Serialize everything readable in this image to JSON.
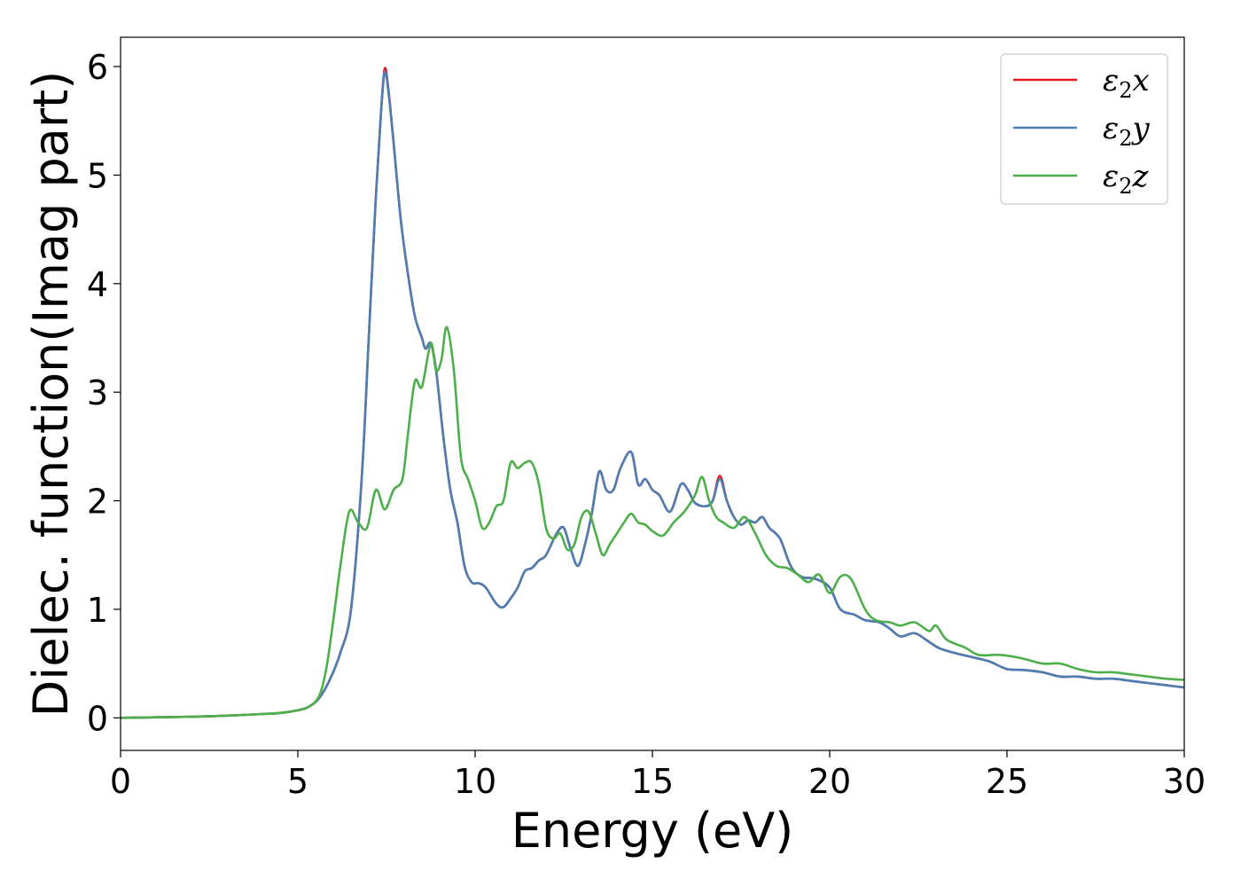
{
  "chart_data": {
    "type": "line",
    "title": "",
    "xlabel": "Energy (eV)",
    "ylabel": "Dielec. function(Imag part)",
    "xlim": [
      0,
      30
    ],
    "ylim": [
      -0.3,
      6.27
    ],
    "xticks": [
      0,
      5,
      10,
      15,
      20,
      25,
      30
    ],
    "yticks": [
      0,
      1,
      2,
      3,
      4,
      5,
      6
    ],
    "grid": false,
    "legend_position": "top-right",
    "series": [
      {
        "name_main": "ε",
        "name_sub": "2",
        "name_suffix": "x",
        "color": "#e41a1c",
        "x": [
          0,
          1,
          2,
          3,
          4,
          4.5,
          5,
          5.3,
          5.6,
          5.9,
          6.2,
          6.5,
          6.8,
          7.0,
          7.2,
          7.35,
          7.45,
          7.55,
          7.7,
          7.9,
          8.1,
          8.3,
          8.5,
          8.6,
          8.75,
          8.9,
          9.1,
          9.3,
          9.5,
          9.7,
          9.9,
          10.1,
          10.3,
          10.6,
          10.8,
          11.0,
          11.2,
          11.4,
          11.6,
          11.8,
          12.0,
          12.3,
          12.5,
          12.7,
          12.9,
          13.1,
          13.3,
          13.5,
          13.7,
          13.9,
          14.1,
          14.4,
          14.6,
          14.8,
          15.0,
          15.2,
          15.5,
          15.8,
          16.0,
          16.2,
          16.5,
          16.7,
          16.9,
          17.1,
          17.3,
          17.5,
          17.7,
          17.9,
          18.1,
          18.3,
          18.6,
          18.9,
          19.2,
          19.6,
          20.0,
          20.3,
          20.7,
          21.0,
          21.4,
          21.7,
          22.0,
          22.4,
          22.8,
          23.1,
          23.5,
          24.0,
          24.5,
          25.0,
          25.5,
          26.0,
          26.5,
          27.0,
          27.5,
          28.0,
          28.5,
          29.0,
          29.5,
          30.0
        ],
        "y": [
          0.0,
          0.005,
          0.01,
          0.02,
          0.035,
          0.045,
          0.07,
          0.1,
          0.18,
          0.35,
          0.6,
          1.0,
          2.2,
          3.5,
          4.8,
          5.6,
          5.98,
          5.8,
          5.3,
          4.6,
          4.1,
          3.7,
          3.5,
          3.4,
          3.45,
          3.2,
          2.6,
          2.1,
          1.8,
          1.4,
          1.25,
          1.24,
          1.2,
          1.05,
          1.02,
          1.1,
          1.2,
          1.35,
          1.38,
          1.45,
          1.5,
          1.7,
          1.75,
          1.55,
          1.4,
          1.6,
          1.9,
          2.27,
          2.1,
          2.1,
          2.3,
          2.45,
          2.15,
          2.2,
          2.1,
          2.05,
          1.9,
          2.15,
          2.1,
          1.98,
          1.95,
          2.0,
          2.23,
          2.0,
          1.85,
          1.78,
          1.82,
          1.8,
          1.85,
          1.75,
          1.65,
          1.4,
          1.3,
          1.28,
          1.2,
          1.0,
          0.95,
          0.9,
          0.88,
          0.82,
          0.75,
          0.78,
          0.7,
          0.64,
          0.6,
          0.56,
          0.52,
          0.45,
          0.44,
          0.42,
          0.38,
          0.38,
          0.36,
          0.36,
          0.34,
          0.32,
          0.3,
          0.28
        ]
      },
      {
        "name_main": "ε",
        "name_sub": "2",
        "name_suffix": "y",
        "color": "#4a7fb5",
        "x": [
          0,
          1,
          2,
          3,
          4,
          4.5,
          5,
          5.3,
          5.6,
          5.9,
          6.2,
          6.5,
          6.8,
          7.0,
          7.2,
          7.35,
          7.45,
          7.55,
          7.7,
          7.9,
          8.1,
          8.3,
          8.5,
          8.6,
          8.75,
          8.9,
          9.1,
          9.3,
          9.5,
          9.7,
          9.9,
          10.1,
          10.3,
          10.6,
          10.8,
          11.0,
          11.2,
          11.4,
          11.6,
          11.8,
          12.0,
          12.3,
          12.5,
          12.7,
          12.9,
          13.1,
          13.3,
          13.5,
          13.7,
          13.9,
          14.1,
          14.4,
          14.6,
          14.8,
          15.0,
          15.2,
          15.5,
          15.8,
          16.0,
          16.2,
          16.5,
          16.7,
          16.9,
          17.1,
          17.3,
          17.5,
          17.7,
          17.9,
          18.1,
          18.3,
          18.6,
          18.9,
          19.2,
          19.6,
          20.0,
          20.3,
          20.7,
          21.0,
          21.4,
          21.7,
          22.0,
          22.4,
          22.8,
          23.1,
          23.5,
          24.0,
          24.5,
          25.0,
          25.5,
          26.0,
          26.5,
          27.0,
          27.5,
          28.0,
          28.5,
          29.0,
          29.5,
          30.0
        ],
        "y": [
          0.0,
          0.005,
          0.01,
          0.02,
          0.035,
          0.045,
          0.07,
          0.1,
          0.18,
          0.35,
          0.6,
          1.0,
          2.2,
          3.5,
          4.8,
          5.6,
          5.95,
          5.78,
          5.3,
          4.6,
          4.1,
          3.7,
          3.5,
          3.4,
          3.45,
          3.2,
          2.6,
          2.1,
          1.8,
          1.4,
          1.25,
          1.24,
          1.2,
          1.05,
          1.02,
          1.1,
          1.2,
          1.35,
          1.38,
          1.45,
          1.5,
          1.7,
          1.75,
          1.55,
          1.4,
          1.6,
          1.9,
          2.27,
          2.1,
          2.1,
          2.3,
          2.45,
          2.15,
          2.2,
          2.1,
          2.05,
          1.9,
          2.15,
          2.1,
          1.98,
          1.95,
          2.0,
          2.2,
          2.0,
          1.85,
          1.78,
          1.82,
          1.8,
          1.85,
          1.75,
          1.65,
          1.4,
          1.3,
          1.28,
          1.2,
          1.0,
          0.95,
          0.9,
          0.88,
          0.82,
          0.75,
          0.78,
          0.7,
          0.64,
          0.6,
          0.56,
          0.52,
          0.45,
          0.44,
          0.42,
          0.38,
          0.38,
          0.36,
          0.36,
          0.34,
          0.32,
          0.3,
          0.28
        ]
      },
      {
        "name_main": "ε",
        "name_sub": "2",
        "name_suffix": "z",
        "color": "#4daf4a",
        "x": [
          0,
          1,
          2,
          3,
          4,
          4.5,
          5,
          5.3,
          5.6,
          5.8,
          6.0,
          6.2,
          6.45,
          6.7,
          6.95,
          7.2,
          7.45,
          7.7,
          7.95,
          8.1,
          8.3,
          8.5,
          8.75,
          8.9,
          9.05,
          9.2,
          9.4,
          9.6,
          9.8,
          10.0,
          10.2,
          10.4,
          10.6,
          10.8,
          11.0,
          11.2,
          11.4,
          11.6,
          11.8,
          12.0,
          12.2,
          12.4,
          12.6,
          12.8,
          13.0,
          13.2,
          13.4,
          13.6,
          13.8,
          14.0,
          14.2,
          14.4,
          14.6,
          14.8,
          15.0,
          15.3,
          15.6,
          15.9,
          16.2,
          16.4,
          16.6,
          16.8,
          17.0,
          17.3,
          17.6,
          17.9,
          18.2,
          18.5,
          18.8,
          19.1,
          19.4,
          19.7,
          20.0,
          20.3,
          20.6,
          21.0,
          21.3,
          21.7,
          22.0,
          22.4,
          22.8,
          23.0,
          23.3,
          23.8,
          24.2,
          24.8,
          25.4,
          26.0,
          26.5,
          27.0,
          27.5,
          28.0,
          28.5,
          29.0,
          29.5,
          30.0
        ],
        "y": [
          0.0,
          0.005,
          0.01,
          0.02,
          0.035,
          0.045,
          0.07,
          0.1,
          0.2,
          0.45,
          0.9,
          1.4,
          1.9,
          1.8,
          1.75,
          2.1,
          1.92,
          2.1,
          2.2,
          2.6,
          3.1,
          3.05,
          3.45,
          3.2,
          3.3,
          3.6,
          3.2,
          2.4,
          2.2,
          2.0,
          1.75,
          1.8,
          1.95,
          2.0,
          2.35,
          2.3,
          2.35,
          2.35,
          2.15,
          1.75,
          1.65,
          1.7,
          1.55,
          1.6,
          1.85,
          1.9,
          1.7,
          1.5,
          1.6,
          1.7,
          1.8,
          1.88,
          1.8,
          1.78,
          1.72,
          1.68,
          1.8,
          1.9,
          2.05,
          2.22,
          2.0,
          1.85,
          1.8,
          1.75,
          1.85,
          1.7,
          1.5,
          1.4,
          1.38,
          1.32,
          1.25,
          1.32,
          1.15,
          1.3,
          1.28,
          1.0,
          0.9,
          0.88,
          0.85,
          0.88,
          0.8,
          0.85,
          0.72,
          0.65,
          0.58,
          0.58,
          0.55,
          0.5,
          0.5,
          0.45,
          0.42,
          0.42,
          0.4,
          0.38,
          0.36,
          0.35
        ]
      }
    ]
  }
}
